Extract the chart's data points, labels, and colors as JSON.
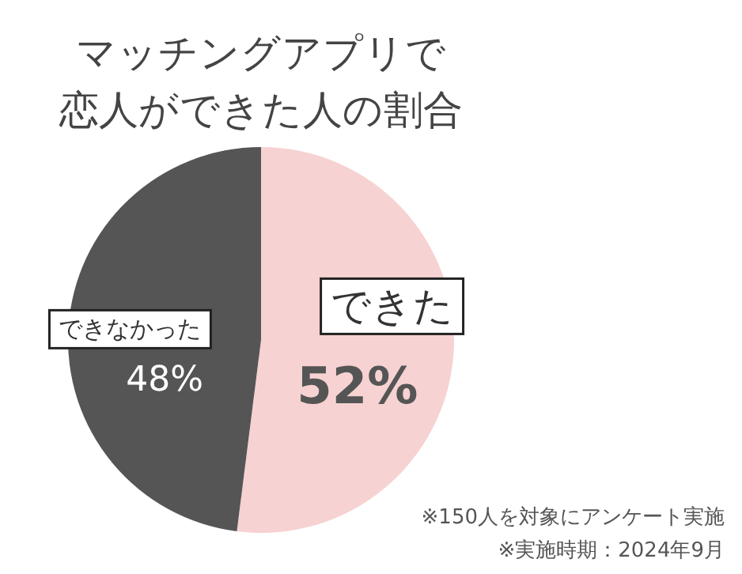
{
  "chart_data": {
    "type": "pie",
    "title": "マッチングアプリで恋人ができた人の割合",
    "categories": [
      "できた",
      "できなかった"
    ],
    "values": [
      52,
      48
    ],
    "colors": [
      "#f6d2d2",
      "#555555"
    ],
    "value_labels": [
      "52%",
      "48%"
    ],
    "annotations": [
      "※150人を対象にアンケート実施",
      "※実施時期：2024年9月"
    ]
  }
}
